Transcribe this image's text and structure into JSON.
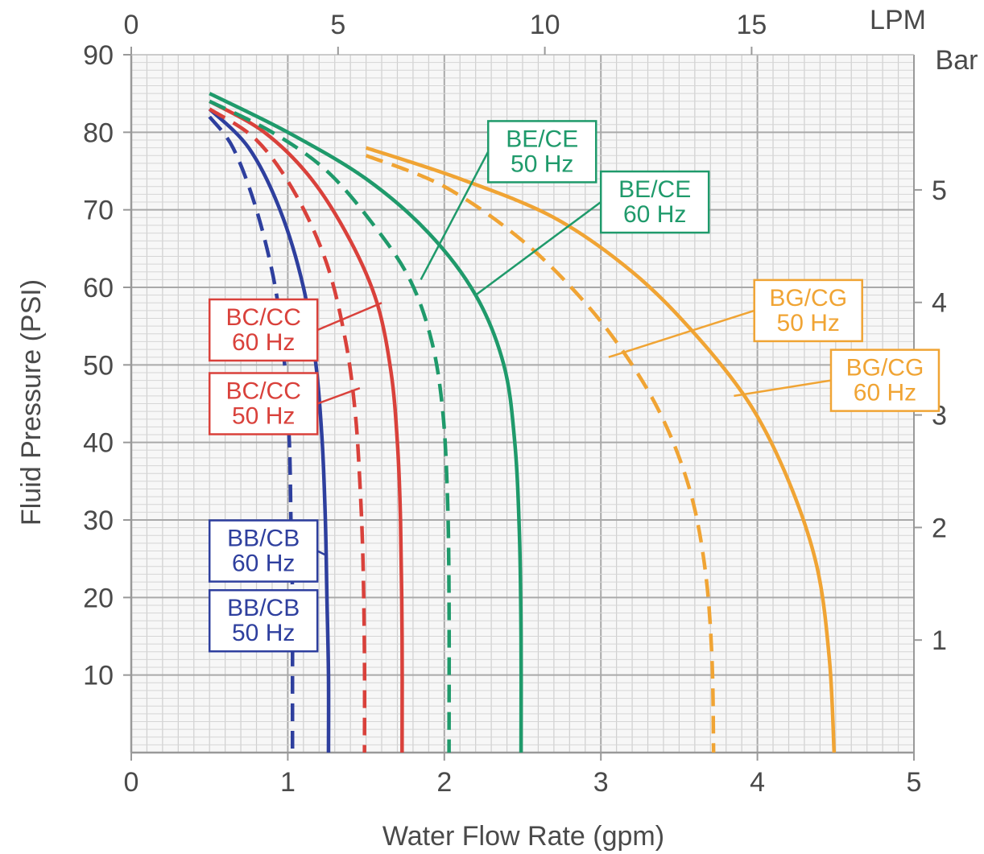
{
  "chart_data": {
    "type": "line",
    "title": "",
    "xlabel": "Water Flow Rate (gpm)",
    "ylabel": "Fluid Pressure (PSI)",
    "xlim": [
      0,
      5
    ],
    "ylim": [
      0,
      90
    ],
    "x_ticks": [
      "0",
      "1",
      "2",
      "3",
      "4",
      "5"
    ],
    "y_ticks": [
      "10",
      "20",
      "30",
      "40",
      "50",
      "60",
      "70",
      "80",
      "90"
    ],
    "x2": {
      "unit_label": "LPM",
      "ticks": [
        "0",
        "5",
        "10",
        "15"
      ],
      "tick_values": [
        0,
        5,
        10,
        15
      ],
      "per_gpm": 3.785
    },
    "y2": {
      "unit_label": "Bar",
      "ticks": [
        "1",
        "2",
        "3",
        "4",
        "5"
      ],
      "tick_values": [
        1,
        2,
        3,
        4,
        5
      ],
      "per_psi": 0.0689
    },
    "grid": true,
    "legend": "none",
    "series": [
      {
        "name": "BB/CB 50 Hz",
        "color": "#2e3f9e",
        "dashed": true,
        "points": [
          [
            0.5,
            82
          ],
          [
            0.65,
            78
          ],
          [
            0.8,
            70
          ],
          [
            0.92,
            60
          ],
          [
            0.98,
            50
          ],
          [
            1.01,
            40
          ],
          [
            1.02,
            30
          ],
          [
            1.03,
            20
          ],
          [
            1.03,
            10
          ],
          [
            1.03,
            0
          ]
        ],
        "label_lines": [
          "BB/CB",
          "50 Hz"
        ],
        "label_at": [
          0.5,
          17
        ]
      },
      {
        "name": "BB/CB 60 Hz",
        "color": "#2e3f9e",
        "dashed": false,
        "points": [
          [
            0.5,
            83
          ],
          [
            0.75,
            78
          ],
          [
            0.95,
            70
          ],
          [
            1.1,
            60
          ],
          [
            1.18,
            50
          ],
          [
            1.22,
            40
          ],
          [
            1.24,
            30
          ],
          [
            1.25,
            20
          ],
          [
            1.26,
            10
          ],
          [
            1.26,
            0
          ]
        ],
        "label_lines": [
          "BB/CB",
          "60 Hz"
        ],
        "label_at": [
          0.5,
          26
        ]
      },
      {
        "name": "BC/CC 50 Hz",
        "color": "#d9413b",
        "dashed": true,
        "points": [
          [
            0.5,
            83
          ],
          [
            0.8,
            79
          ],
          [
            1.05,
            72
          ],
          [
            1.25,
            63
          ],
          [
            1.37,
            53
          ],
          [
            1.43,
            44
          ],
          [
            1.46,
            35
          ],
          [
            1.48,
            25
          ],
          [
            1.49,
            12
          ],
          [
            1.49,
            0
          ]
        ],
        "label_lines": [
          "BC/CC",
          "50 Hz"
        ],
        "label_at": [
          0.5,
          45
        ]
      },
      {
        "name": "BC/CC 60 Hz",
        "color": "#d9413b",
        "dashed": false,
        "points": [
          [
            0.5,
            84
          ],
          [
            0.85,
            80
          ],
          [
            1.15,
            74
          ],
          [
            1.4,
            66
          ],
          [
            1.57,
            58
          ],
          [
            1.66,
            49
          ],
          [
            1.7,
            40
          ],
          [
            1.72,
            30
          ],
          [
            1.73,
            15
          ],
          [
            1.73,
            0
          ]
        ],
        "label_lines": [
          "BC/CC",
          "60 Hz"
        ],
        "label_at": [
          0.5,
          54.5
        ]
      },
      {
        "name": "BE/CE 50 Hz",
        "color": "#1f9a6b",
        "dashed": true,
        "points": [
          [
            0.5,
            84
          ],
          [
            0.9,
            80
          ],
          [
            1.25,
            75
          ],
          [
            1.55,
            68
          ],
          [
            1.78,
            61
          ],
          [
            1.92,
            53
          ],
          [
            1.99,
            44
          ],
          [
            2.02,
            33
          ],
          [
            2.03,
            20
          ],
          [
            2.03,
            0
          ]
        ],
        "label_lines": [
          "BE/CE",
          "50 Hz"
        ],
        "label_at": [
          2.28,
          77.5
        ]
      },
      {
        "name": "BE/CE 60 Hz",
        "color": "#1f9a6b",
        "dashed": false,
        "points": [
          [
            0.5,
            85
          ],
          [
            1.0,
            80
          ],
          [
            1.5,
            74
          ],
          [
            1.9,
            67
          ],
          [
            2.2,
            59
          ],
          [
            2.38,
            50
          ],
          [
            2.45,
            40
          ],
          [
            2.48,
            28
          ],
          [
            2.49,
            15
          ],
          [
            2.49,
            0
          ]
        ],
        "label_lines": [
          "BE/CE",
          "60 Hz"
        ],
        "label_at": [
          3.0,
          71
        ]
      },
      {
        "name": "BG/CG 50 Hz",
        "color": "#f0a434",
        "dashed": true,
        "points": [
          [
            1.5,
            77
          ],
          [
            2.0,
            73
          ],
          [
            2.5,
            66
          ],
          [
            2.9,
            58
          ],
          [
            3.2,
            50
          ],
          [
            3.42,
            42
          ],
          [
            3.58,
            33
          ],
          [
            3.67,
            23
          ],
          [
            3.71,
            12
          ],
          [
            3.72,
            0
          ]
        ],
        "label_lines": [
          "BG/CG",
          "50 Hz"
        ],
        "label_at": [
          3.98,
          57
        ]
      },
      {
        "name": "BG/CG 60 Hz",
        "color": "#f0a434",
        "dashed": false,
        "points": [
          [
            1.5,
            78
          ],
          [
            2.1,
            74
          ],
          [
            2.7,
            69
          ],
          [
            3.2,
            62
          ],
          [
            3.6,
            54
          ],
          [
            3.95,
            45
          ],
          [
            4.2,
            35
          ],
          [
            4.38,
            24
          ],
          [
            4.46,
            12
          ],
          [
            4.49,
            0
          ]
        ],
        "label_lines": [
          "BG/CG",
          "60 Hz"
        ],
        "label_at": [
          4.47,
          48
        ]
      }
    ],
    "leader_targets": {
      "BB/CB 50 Hz": [
        1.03,
        16.5
      ],
      "BB/CB 60 Hz": [
        1.24,
        25.5
      ],
      "BC/CC 50 Hz": [
        1.46,
        47
      ],
      "BC/CC 60 Hz": [
        1.6,
        58
      ],
      "BE/CE 50 Hz": [
        1.85,
        61
      ],
      "BE/CE 60 Hz": [
        2.2,
        59
      ],
      "BG/CG 50 Hz": [
        3.05,
        51
      ],
      "BG/CG 60 Hz": [
        3.85,
        46
      ]
    }
  }
}
